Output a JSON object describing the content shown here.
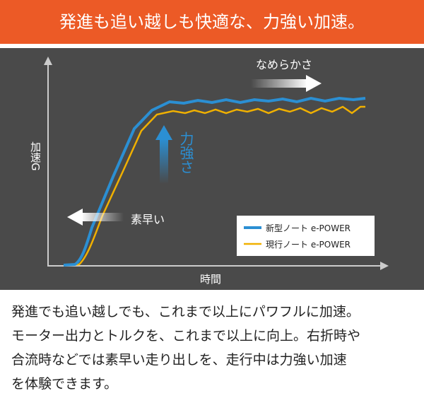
{
  "header": {
    "title": "発進も追い越しも快適な、力強い加速。"
  },
  "chart": {
    "y_axis_label": "加速G",
    "x_axis_label": "時間",
    "annotations": {
      "smoothness": "なめらかさ",
      "power": "力強さ",
      "quickness": "素早い"
    },
    "legend": [
      {
        "label": "新型ノート e-POWER",
        "color": "#2b8fd3"
      },
      {
        "label": "現行ノート e-POWER",
        "color": "#f0b000"
      }
    ]
  },
  "body": {
    "lines": [
      "発進でも追い越しでも、これまで以上にパワフルに加速。",
      "モーター出力とトルクを、これまで以上に向上。右折時や",
      "合流時などでは素早い走り出しを、走行中は力強い加速",
      "を体験できます。"
    ]
  }
}
